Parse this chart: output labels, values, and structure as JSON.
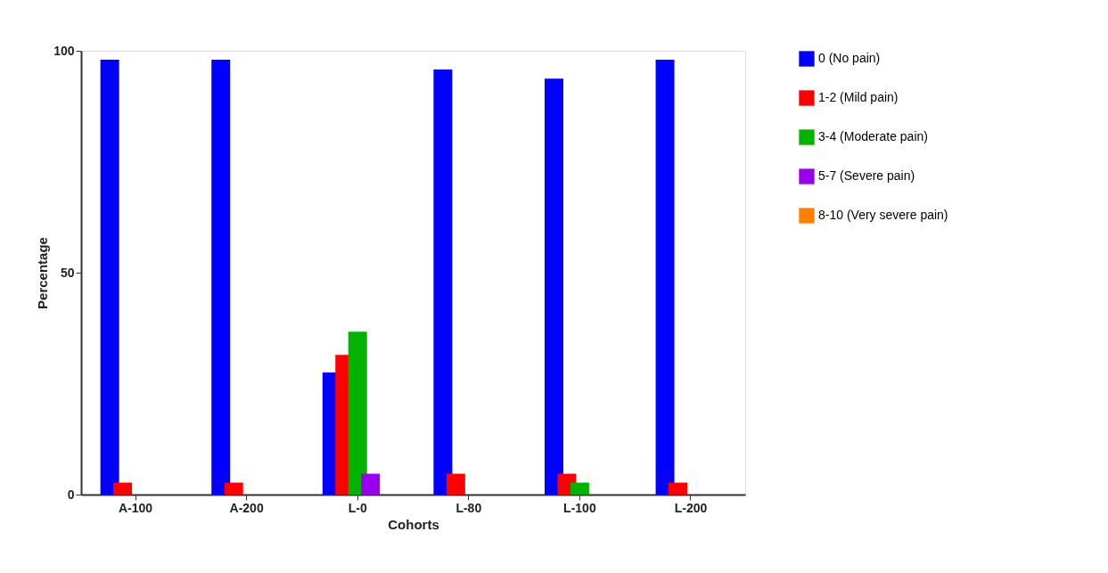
{
  "chart_data": {
    "type": "bar",
    "xlabel": "Cohorts",
    "ylabel": "Percentage",
    "categories": [
      "A-100",
      "A-200",
      "L-0",
      "L-80",
      "L-100",
      "L-200"
    ],
    "series": [
      {
        "name": "0 (No pain)",
        "color": "#0000ff",
        "values": [
          98,
          98,
          27.5,
          95.8,
          93.7,
          98
        ]
      },
      {
        "name": "1-2 (Mild pain)",
        "color": "#ff0000",
        "values": [
          2.7,
          2.7,
          31.5,
          4.7,
          4.7,
          2.7
        ]
      },
      {
        "name": "3-4 (Moderate pain)",
        "color": "#00b400",
        "values": [
          0,
          0,
          36.7,
          0,
          2.7,
          0
        ]
      },
      {
        "name": "5-7 (Severe pain)",
        "color": "#9900ee",
        "values": [
          0,
          0,
          4.7,
          0,
          0,
          0
        ]
      },
      {
        "name": "8-10 (Very severe pain)",
        "color": "#ff8000",
        "values": [
          0,
          0,
          0,
          0,
          0,
          0
        ]
      }
    ],
    "ylim": [
      0,
      100
    ],
    "yticks": [
      0,
      50,
      100
    ],
    "grid": false,
    "legend": "top right"
  }
}
